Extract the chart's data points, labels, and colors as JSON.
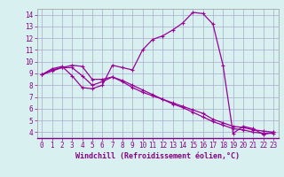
{
  "title": "",
  "xlabel": "Windchill (Refroidissement éolien,°C)",
  "background_color": "#d8f0f0",
  "grid_color": "#aaaacc",
  "line_color": "#990099",
  "label_color": "#880088",
  "xlim": [
    -0.5,
    23.5
  ],
  "ylim": [
    3.5,
    14.5
  ],
  "xticks": [
    0,
    1,
    2,
    3,
    4,
    5,
    6,
    7,
    8,
    9,
    10,
    11,
    12,
    13,
    14,
    15,
    16,
    17,
    18,
    19,
    20,
    21,
    22,
    23
  ],
  "yticks": [
    4,
    5,
    6,
    7,
    8,
    9,
    10,
    11,
    12,
    13,
    14
  ],
  "line1_x": [
    0,
    1,
    2,
    3,
    4,
    5,
    6,
    7,
    8,
    9,
    10,
    11,
    12,
    13,
    14,
    15,
    16,
    17,
    18,
    19,
    20,
    21,
    22,
    23
  ],
  "line1_y": [
    8.9,
    9.4,
    9.6,
    8.8,
    7.8,
    7.7,
    8.0,
    9.7,
    9.5,
    9.3,
    11.0,
    11.9,
    12.2,
    12.7,
    13.3,
    14.2,
    14.1,
    13.2,
    9.7,
    3.9,
    4.5,
    4.3,
    3.8,
    4.0
  ],
  "line2_x": [
    0,
    1,
    2,
    3,
    4,
    5,
    6,
    7,
    8,
    9,
    10,
    11,
    12,
    13,
    14,
    15,
    16,
    17,
    18,
    19,
    20,
    21,
    22,
    23
  ],
  "line2_y": [
    8.9,
    9.2,
    9.5,
    9.7,
    9.6,
    8.5,
    8.5,
    8.7,
    8.3,
    7.8,
    7.4,
    7.1,
    6.8,
    6.5,
    6.2,
    5.9,
    5.6,
    5.1,
    4.8,
    4.5,
    4.4,
    4.2,
    4.1,
    4.0
  ],
  "line3_x": [
    0,
    1,
    2,
    3,
    4,
    5,
    6,
    7,
    8,
    9,
    10,
    11,
    12,
    13,
    14,
    15,
    16,
    17,
    18,
    19,
    20,
    21,
    22,
    23
  ],
  "line3_y": [
    8.9,
    9.3,
    9.5,
    9.5,
    8.8,
    8.0,
    8.3,
    8.7,
    8.4,
    8.0,
    7.6,
    7.2,
    6.8,
    6.4,
    6.1,
    5.7,
    5.3,
    4.9,
    4.6,
    4.3,
    4.2,
    4.0,
    3.9,
    3.9
  ],
  "tick_fontsize": 5.5,
  "xlabel_fontsize": 6,
  "marker_size": 3,
  "linewidth": 0.9
}
